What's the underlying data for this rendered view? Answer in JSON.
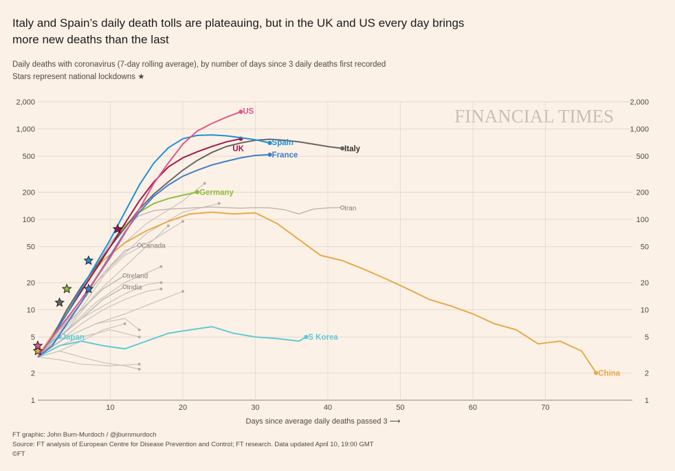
{
  "title": "Italy and Spain’s daily death tolls are plateauing, but in the UK and US every day brings more new deaths than the last",
  "subtitle": "Daily deaths with coronavirus (7-day rolling average), by number of days since 3 daily deaths first recorded",
  "subtitle2": "Stars represent national lockdowns",
  "brand": "FINANCIAL TIMES",
  "footer": {
    "credit": "FT graphic: John Burn-Murdoch / @jburnmurdoch",
    "source": "Source: FT analysis of European Centre for Disease Prevention and Control; FT research. Data updated April 10, 19:00 GMT",
    "copyright": "©FT"
  },
  "chart_data": {
    "type": "line",
    "title": "Italy and Spain’s daily death tolls are plateauing, but in the UK and US every day brings more new deaths than the last",
    "xlabel": "Days since average daily deaths passed 3 ⟶",
    "ylabel": "",
    "xlim": [
      0,
      82
    ],
    "ylim": [
      1,
      2000
    ],
    "y_scale": "log",
    "x_ticks": [
      10,
      20,
      30,
      40,
      50,
      60,
      70
    ],
    "y_ticks": [
      1,
      2,
      5,
      10,
      20,
      50,
      100,
      200,
      500,
      1000,
      2000
    ],
    "y_tick_labels": [
      "1",
      "2",
      "5",
      "10",
      "20",
      "50",
      "100",
      "200",
      "500",
      "1,000",
      "2,000"
    ],
    "grid": true,
    "colors": {
      "US": "#e0558b",
      "Spain": "#1d8fd6",
      "UK": "#a3154f",
      "France": "#3d7fc9",
      "Italy": "#666666",
      "Germany": "#8ebf3f",
      "Iran": "#bdb6b0",
      "China": "#e8a94a",
      "S Korea": "#5fcad8",
      "Japan": "#5fcad8",
      "gray": "#c9c2bc"
    },
    "series": [
      {
        "name": "US",
        "x": [
          0,
          2,
          4,
          6,
          8,
          10,
          12,
          14,
          16,
          18,
          20,
          22,
          24,
          26,
          28
        ],
        "y": [
          3,
          5,
          8,
          13,
          22,
          38,
          70,
          130,
          250,
          420,
          680,
          950,
          1150,
          1350,
          1550
        ],
        "label_pos": "end"
      },
      {
        "name": "Spain",
        "x": [
          0,
          2,
          4,
          6,
          8,
          10,
          12,
          14,
          16,
          18,
          20,
          22,
          24,
          26,
          28,
          30,
          32
        ],
        "y": [
          3,
          5,
          9,
          17,
          32,
          60,
          120,
          240,
          420,
          620,
          780,
          850,
          860,
          840,
          800,
          760,
          700
        ],
        "label_pos": "end"
      },
      {
        "name": "UK",
        "x": [
          0,
          2,
          4,
          6,
          8,
          10,
          12,
          14,
          16,
          18,
          20,
          22,
          24,
          26,
          28
        ],
        "y": [
          3,
          5,
          9,
          16,
          28,
          50,
          90,
          160,
          260,
          380,
          480,
          560,
          640,
          720,
          780
        ],
        "label_pos": "end"
      },
      {
        "name": "France",
        "x": [
          0,
          2,
          4,
          6,
          8,
          10,
          12,
          14,
          16,
          18,
          20,
          22,
          24,
          26,
          28,
          30,
          32
        ],
        "y": [
          3,
          4,
          7,
          12,
          22,
          40,
          72,
          120,
          180,
          240,
          300,
          350,
          400,
          440,
          480,
          510,
          520
        ],
        "label_pos": "end"
      },
      {
        "name": "Italy",
        "x": [
          0,
          2,
          4,
          6,
          8,
          10,
          12,
          14,
          16,
          18,
          20,
          22,
          24,
          26,
          28,
          30,
          32,
          34,
          36,
          38,
          40,
          42
        ],
        "y": [
          3,
          5,
          10,
          18,
          30,
          50,
          80,
          130,
          190,
          260,
          350,
          450,
          550,
          640,
          700,
          750,
          770,
          750,
          720,
          680,
          640,
          610
        ],
        "label_pos": "end"
      },
      {
        "name": "Germany",
        "x": [
          0,
          2,
          4,
          6,
          8,
          10,
          12,
          14,
          16,
          18,
          20,
          22
        ],
        "y": [
          3,
          5,
          9,
          16,
          28,
          50,
          85,
          120,
          150,
          170,
          185,
          200
        ],
        "label_pos": "end"
      },
      {
        "name": "Iran",
        "x": [
          0,
          2,
          4,
          6,
          8,
          10,
          12,
          14,
          16,
          18,
          20,
          22,
          24,
          26,
          28,
          30,
          32,
          34,
          36,
          38,
          40,
          42
        ],
        "y": [
          3,
          5,
          9,
          16,
          30,
          55,
          85,
          110,
          125,
          130,
          132,
          135,
          137,
          135,
          133,
          135,
          134,
          128,
          115,
          130,
          134,
          135
        ],
        "label_pos": "end"
      },
      {
        "name": "China",
        "x": [
          0,
          3,
          6,
          9,
          12,
          15,
          18,
          21,
          24,
          27,
          30,
          33,
          36,
          39,
          42,
          45,
          48,
          51,
          54,
          57,
          60,
          63,
          66,
          69,
          72,
          75,
          77
        ],
        "y": [
          3,
          7,
          18,
          35,
          55,
          75,
          95,
          115,
          120,
          115,
          118,
          90,
          60,
          40,
          35,
          28,
          22,
          17,
          13,
          11,
          9,
          7,
          6,
          4.2,
          4.5,
          3.5,
          2
        ],
        "label_pos": "end"
      },
      {
        "name": "S Korea",
        "x": [
          0,
          3,
          6,
          9,
          12,
          15,
          18,
          21,
          24,
          27,
          30,
          33,
          36,
          37
        ],
        "y": [
          3,
          4,
          4.5,
          4,
          3.7,
          4.5,
          5.5,
          6,
          6.5,
          5.5,
          5,
          4.8,
          4.5,
          5
        ],
        "label_pos": "end"
      },
      {
        "name": "Japan",
        "x": [
          0,
          1,
          2,
          3
        ],
        "y": [
          3,
          4,
          4.5,
          5
        ],
        "label_pos": "end"
      },
      {
        "name": "Canada",
        "x": [
          0,
          3,
          6,
          9,
          12,
          14
        ],
        "y": [
          3,
          6,
          12,
          25,
          45,
          52
        ],
        "label_pos": "end"
      },
      {
        "name": "Ireland",
        "x": [
          0,
          3,
          6,
          9,
          12
        ],
        "y": [
          3,
          6,
          10,
          17,
          24
        ],
        "label_pos": "end"
      },
      {
        "name": "India",
        "x": [
          0,
          3,
          6,
          9,
          12
        ],
        "y": [
          3,
          5,
          8,
          13,
          18
        ],
        "label_pos": "end"
      }
    ],
    "gray_series": [
      {
        "x": [
          0,
          3,
          6,
          10,
          14
        ],
        "y": [
          3,
          4,
          5,
          6,
          5
        ]
      },
      {
        "x": [
          0,
          3,
          6,
          9,
          12,
          14
        ],
        "y": [
          3,
          3.5,
          3,
          2.6,
          2.4,
          2.2
        ]
      },
      {
        "x": [
          0,
          3,
          6,
          10,
          14
        ],
        "y": [
          3,
          2.8,
          2.5,
          2.4,
          2.5
        ]
      },
      {
        "x": [
          0,
          3,
          6,
          9,
          12,
          15,
          17
        ],
        "y": [
          3,
          5,
          8,
          11,
          15,
          19,
          20
        ]
      },
      {
        "x": [
          0,
          3,
          6,
          9,
          12,
          15,
          17
        ],
        "y": [
          3,
          4.5,
          7,
          10,
          13,
          16,
          17
        ]
      },
      {
        "x": [
          0,
          4,
          8,
          12,
          16,
          20
        ],
        "y": [
          3,
          5,
          7,
          9,
          12,
          16
        ]
      },
      {
        "x": [
          0,
          4,
          8,
          12,
          17
        ],
        "y": [
          3,
          6,
          12,
          20,
          30
        ]
      },
      {
        "x": [
          0,
          5,
          10,
          15,
          20,
          23
        ],
        "y": [
          3,
          10,
          40,
          90,
          160,
          250
        ]
      },
      {
        "x": [
          0,
          5,
          10,
          15,
          20,
          25
        ],
        "y": [
          3,
          8,
          30,
          70,
          120,
          150
        ]
      },
      {
        "x": [
          0,
          4,
          8,
          12,
          16,
          20
        ],
        "y": [
          3,
          7,
          20,
          40,
          60,
          95
        ]
      },
      {
        "x": [
          0,
          4,
          8,
          12,
          16,
          18
        ],
        "y": [
          3,
          6,
          15,
          30,
          60,
          85
        ]
      },
      {
        "x": [
          0,
          4,
          8,
          12,
          14
        ],
        "y": [
          3,
          5,
          7,
          8,
          6
        ]
      },
      {
        "x": [
          0,
          3,
          6,
          9,
          12
        ],
        "y": [
          3,
          3.5,
          4.5,
          6,
          7
        ]
      }
    ],
    "lockdowns": [
      {
        "series": "Italy",
        "x": 3,
        "y": 12
      },
      {
        "series": "Spain",
        "x": 7,
        "y": 35
      },
      {
        "series": "UK",
        "x": 11,
        "y": 78
      },
      {
        "series": "France",
        "x": 7,
        "y": 17
      },
      {
        "series": "Germany",
        "x": 4,
        "y": 17
      },
      {
        "series": "China",
        "x": 0,
        "y": 3.5
      },
      {
        "series": "US",
        "x": 0,
        "y": 4
      }
    ]
  }
}
